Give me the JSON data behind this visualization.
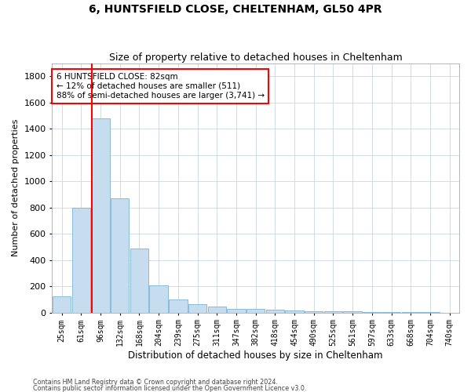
{
  "title": "6, HUNTSFIELD CLOSE, CHELTENHAM, GL50 4PR",
  "subtitle": "Size of property relative to detached houses in Cheltenham",
  "xlabel": "Distribution of detached houses by size in Cheltenham",
  "ylabel": "Number of detached properties",
  "bar_labels": [
    "25sqm",
    "61sqm",
    "96sqm",
    "132sqm",
    "168sqm",
    "204sqm",
    "239sqm",
    "275sqm",
    "311sqm",
    "347sqm",
    "382sqm",
    "418sqm",
    "454sqm",
    "490sqm",
    "525sqm",
    "561sqm",
    "597sqm",
    "633sqm",
    "668sqm",
    "704sqm",
    "740sqm"
  ],
  "bar_values": [
    120,
    800,
    1480,
    870,
    490,
    205,
    100,
    65,
    45,
    30,
    25,
    20,
    18,
    12,
    10,
    8,
    5,
    3,
    2,
    1,
    0
  ],
  "bar_color": "#c6ddef",
  "bar_edge_color": "#7ab3d4",
  "ylim": [
    0,
    1900
  ],
  "yticks": [
    0,
    200,
    400,
    600,
    800,
    1000,
    1200,
    1400,
    1600,
    1800
  ],
  "red_line_x": 1.56,
  "annotation_line1": "6 HUNTSFIELD CLOSE: 82sqm",
  "annotation_line2": "← 12% of detached houses are smaller (511)",
  "annotation_line3": "88% of semi-detached houses are larger (3,741) →",
  "footer_line1": "Contains HM Land Registry data © Crown copyright and database right 2024.",
  "footer_line2": "Contains public sector information licensed under the Open Government Licence v3.0.",
  "background_color": "#ffffff",
  "grid_color": "#c8d8e8",
  "title_fontsize": 10,
  "subtitle_fontsize": 9,
  "ylabel_fontsize": 8,
  "xlabel_fontsize": 8.5,
  "tick_fontsize": 7,
  "ytick_fontsize": 8,
  "annotation_fontsize": 7.5,
  "footer_fontsize": 5.8
}
